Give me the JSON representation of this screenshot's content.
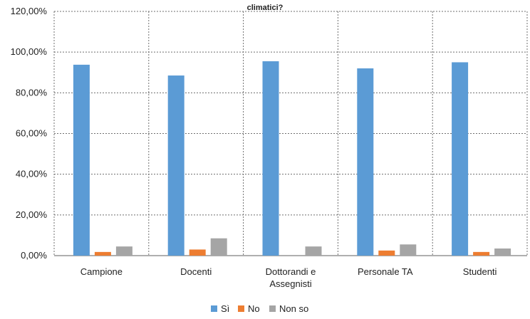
{
  "chart_data": {
    "type": "bar",
    "title": "climatici?",
    "xlabel": "",
    "ylabel": "",
    "categories": [
      "Campione",
      "Docenti",
      "Dottorandi e Assegnisti",
      "Personale TA",
      "Studenti"
    ],
    "category_lines": [
      [
        "Campione"
      ],
      [
        "Docenti"
      ],
      [
        "Dottorandi e",
        "Assegnisti"
      ],
      [
        "Personale TA"
      ],
      [
        "Studenti"
      ]
    ],
    "series": [
      {
        "name": "Sì",
        "color": "#5b9bd5",
        "values": [
          93.8,
          88.5,
          95.5,
          92.0,
          95.0
        ]
      },
      {
        "name": "No",
        "color": "#ed7d31",
        "values": [
          1.8,
          3.0,
          0.0,
          2.5,
          1.8
        ]
      },
      {
        "name": "Non so",
        "color": "#a5a5a5",
        "values": [
          4.5,
          8.5,
          4.5,
          5.5,
          3.5
        ]
      }
    ],
    "ylim": [
      0,
      120
    ],
    "yticks": [
      0,
      20,
      40,
      60,
      80,
      100,
      120
    ],
    "ytick_labels": [
      "0,00%",
      "20,00%",
      "40,00%",
      "60,00%",
      "80,00%",
      "100,00%",
      "120,00%"
    ],
    "grid": "dotted",
    "legend_position": "bottom"
  }
}
